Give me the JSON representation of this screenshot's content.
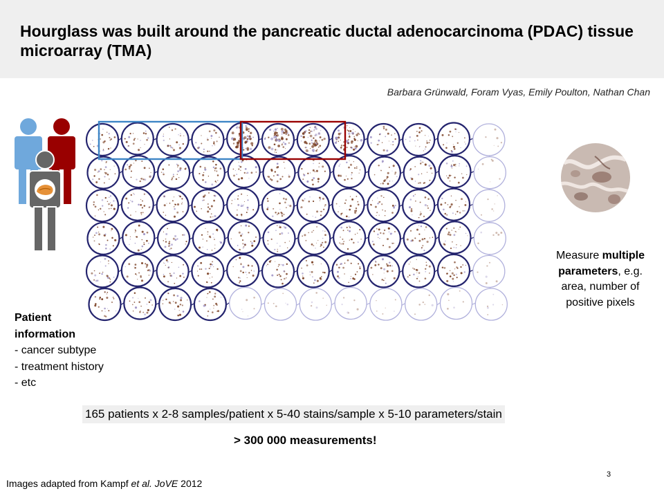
{
  "slide": {
    "title": "Hourglass was built around the pancreatic ductal adenocarcinoma (PDAC) tissue microarray (TMA)",
    "authors": "Barbara Grünwald, Foram Vyas, Emily Poulton, Nathan Chan",
    "measure_pre": "Measure ",
    "measure_bold": "multiple parameters",
    "measure_post": ", e.g. area, number of positive pixels",
    "patient_heading": "Patient information",
    "patient_items": [
      "- cancer subtype",
      "- treatment history",
      "- etc"
    ],
    "formula": "165 patients x 2-8 samples/patient x 5-40 stains/sample x 5-10 parameters/stain",
    "result": "> 300 000 measurements!",
    "credit_pre": "Images adapted from Kampf ",
    "credit_italic1": "et al.",
    "credit_mid": " ",
    "credit_italic2": "JoVE",
    "credit_post": " 2012",
    "page_number": "3"
  },
  "colors": {
    "title_bar": "#efefef",
    "person_blue": "#6fa8dc",
    "person_red": "#990000",
    "person_gray": "#666666",
    "core_ring": "#24246e",
    "highlight_blue": "#3d85c6",
    "highlight_red": "#990000",
    "stain_brown": "#7a3f22"
  }
}
